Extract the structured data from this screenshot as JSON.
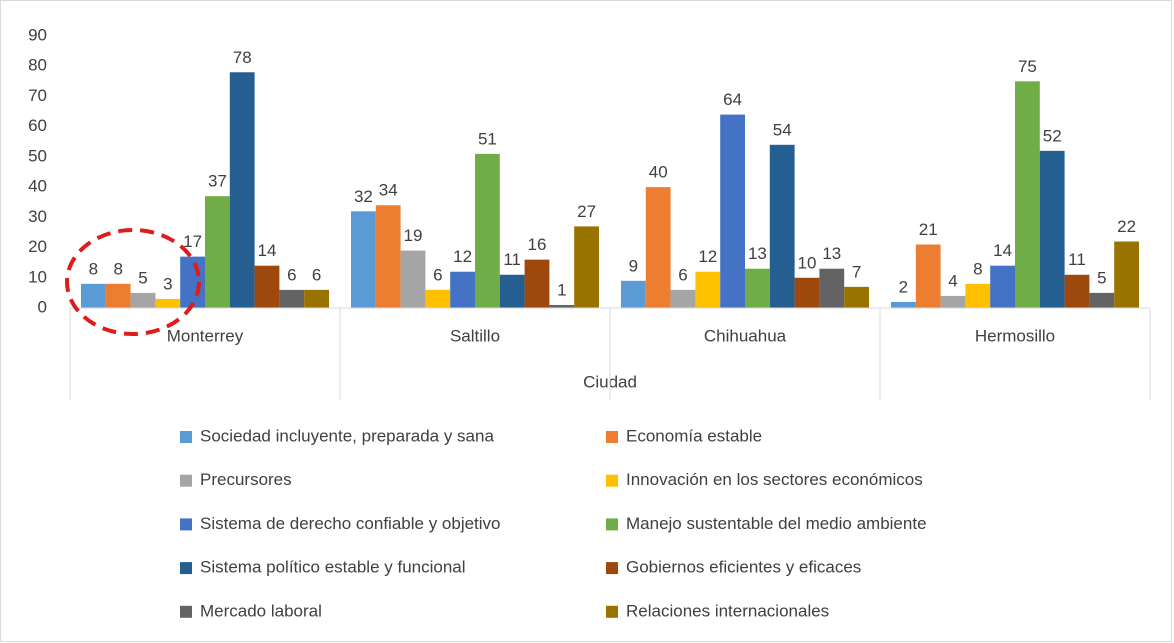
{
  "chart_data": {
    "type": "bar",
    "categories": [
      "Monterrey",
      "Saltillo",
      "Chihuahua",
      "Hermosillo"
    ],
    "x_label": "Ciudad",
    "ylim": [
      0,
      90
    ],
    "yticks": [
      0,
      10,
      20,
      30,
      40,
      50,
      60,
      70,
      80,
      90
    ],
    "grid": false,
    "legend": "bottom",
    "series": [
      {
        "name": "Sociedad incluyente, preparada y sana",
        "color": "#5b9bd5",
        "values": [
          8,
          32,
          9,
          2
        ]
      },
      {
        "name": "Economía estable",
        "color": "#ed7d31",
        "values": [
          8,
          34,
          40,
          21
        ]
      },
      {
        "name": "Precursores",
        "color": "#a5a5a5",
        "values": [
          5,
          19,
          6,
          4
        ]
      },
      {
        "name": "Innovación en los sectores económicos",
        "color": "#ffc000",
        "values": [
          3,
          6,
          12,
          8
        ]
      },
      {
        "name": "Sistema de derecho confiable y objetivo",
        "color": "#4472c4",
        "values": [
          17,
          12,
          64,
          14
        ]
      },
      {
        "name": "Manejo sustentable del medio ambiente",
        "color": "#70ad47",
        "values": [
          37,
          51,
          13,
          75
        ]
      },
      {
        "name": "Sistema político estable y funcional",
        "color": "#255e91",
        "values": [
          78,
          11,
          54,
          52
        ]
      },
      {
        "name": "Gobiernos eficientes y eficaces",
        "color": "#9e480e",
        "values": [
          14,
          16,
          10,
          11
        ]
      },
      {
        "name": "Mercado laboral",
        "color": "#636363",
        "values": [
          6,
          1,
          13,
          5
        ]
      },
      {
        "name": "Relaciones internacionales",
        "color": "#997300",
        "values": [
          6,
          27,
          7,
          22
        ]
      }
    ]
  }
}
